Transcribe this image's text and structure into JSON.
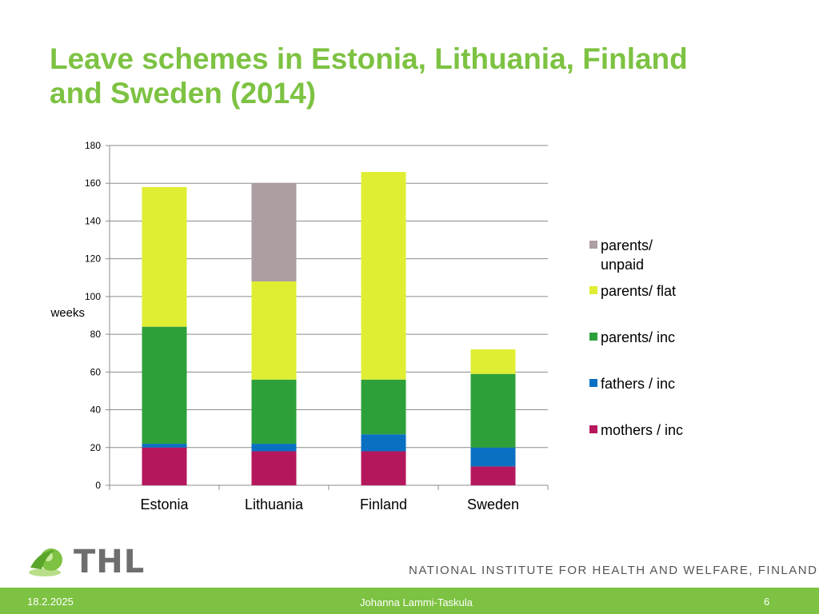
{
  "slide": {
    "title_line1": "Leave schemes in Estonia, Lithuania, Finland",
    "title_line2": "and Sweden (2014)"
  },
  "chart_data": {
    "type": "bar",
    "stacked": true,
    "categories": [
      "Estonia",
      "Lithuania",
      "Finland",
      "Sweden"
    ],
    "ylabel": "weeks",
    "ylim": [
      0,
      180
    ],
    "yticks": [
      0,
      20,
      40,
      60,
      80,
      100,
      120,
      140,
      160,
      180
    ],
    "grid": true,
    "legend_position": "right",
    "series": [
      {
        "name": "mothers / inc",
        "color": "#b5175d",
        "values": [
          20,
          18,
          18,
          10
        ]
      },
      {
        "name": "fathers / inc",
        "color": "#0a70c2",
        "values": [
          2,
          4,
          9,
          10
        ]
      },
      {
        "name": "parents/ inc",
        "color": "#2ea03a",
        "values": [
          62,
          34,
          29,
          39
        ]
      },
      {
        "name": "parents/ flat",
        "color": "#dfee33",
        "values": [
          74,
          52,
          110,
          13
        ]
      },
      {
        "name": "parents/ unpaid",
        "color": "#ad9ea2",
        "values": [
          0,
          52,
          0,
          0
        ]
      }
    ]
  },
  "legend": [
    {
      "line1": "parents/",
      "line2": "unpaid",
      "color": "#ad9ea2"
    },
    {
      "line1": "parents/ flat",
      "line2": "",
      "color": "#dfee33"
    },
    {
      "line1": "parents/ inc",
      "line2": "",
      "color": "#2ea03a"
    },
    {
      "line1": "fathers / inc",
      "line2": "",
      "color": "#0a70c2"
    },
    {
      "line1": "mothers / inc",
      "line2": "",
      "color": "#b5175d"
    }
  ],
  "branding": {
    "logo_text": "THL",
    "institute": "NATIONAL INSTITUTE FOR HEALTH AND WELFARE, FINLAND"
  },
  "footer": {
    "date": "18.2.2025",
    "author": "Johanna Lammi-Taskula",
    "page": "6"
  },
  "colors": {
    "accent": "#7dc242"
  }
}
